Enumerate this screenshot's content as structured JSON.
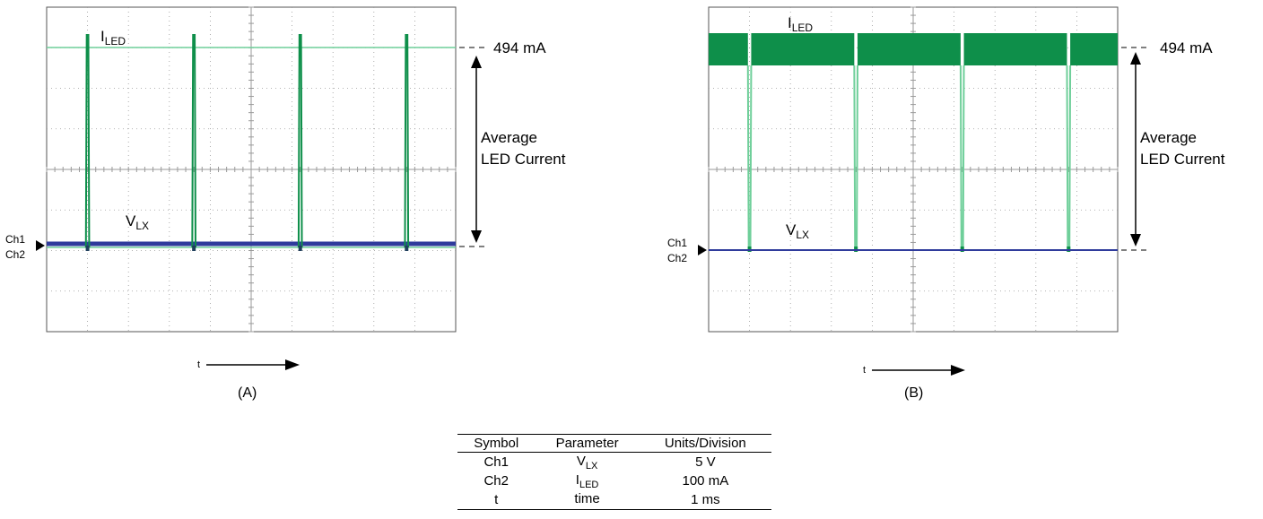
{
  "colors": {
    "iled": "#0e8f4a",
    "iled_light": "#6fcf9a",
    "vlx": "#2f3b9c",
    "grid": "#9a9a9a"
  },
  "figures": [
    {
      "panel_label": "(A)",
      "iled_label": {
        "main": "I",
        "sub": "LED"
      },
      "vlx_label": {
        "main": "V",
        "sub": "LX"
      },
      "ch1": "Ch1",
      "ch2": "Ch2",
      "peak_label": "494 mA",
      "avg_label_line1": "Average",
      "avg_label_line2": "LED Current",
      "time_label": "t"
    },
    {
      "panel_label": "(B)",
      "iled_label": {
        "main": "I",
        "sub": "LED"
      },
      "vlx_label": {
        "main": "V",
        "sub": "LX"
      },
      "ch1": "Ch1",
      "ch2": "Ch2",
      "peak_label": "494 mA",
      "avg_label_line1": "Average",
      "avg_label_line2": "LED Current",
      "time_label": "t"
    }
  ],
  "chart_data": [
    {
      "type": "line",
      "grid": true,
      "x_divisions": 10,
      "y_divisions": 8,
      "xlabel": "t",
      "series": [
        {
          "name": "ILED",
          "shape": "narrow pulses",
          "pulse_times_div": [
            1.0,
            3.6,
            6.2,
            8.8
          ],
          "pulse_width_div": 0.08,
          "level_mA": 494
        },
        {
          "name": "VLX",
          "shape": "flat",
          "level_mA": 0
        }
      ]
    },
    {
      "type": "line",
      "grid": true,
      "x_divisions": 10,
      "y_divisions": 8,
      "xlabel": "t",
      "series": [
        {
          "name": "ILED",
          "shape": "high level with notches",
          "notch_times_div": [
            1.0,
            3.6,
            6.2,
            8.8
          ],
          "notch_width_div": 0.08,
          "level_mA": 494
        },
        {
          "name": "VLX",
          "shape": "flat",
          "level_mA": 0
        }
      ]
    }
  ],
  "table": {
    "headers": [
      "Symbol",
      "Parameter",
      "Units/Division"
    ],
    "rows": [
      {
        "symbol": "Ch1",
        "param_main": "V",
        "param_sub": "LX",
        "units": "5 V"
      },
      {
        "symbol": "Ch2",
        "param_main": "I",
        "param_sub": "LED",
        "units": "100 mA"
      },
      {
        "symbol": "t",
        "param_main": "time",
        "param_sub": "",
        "units": "1 ms"
      }
    ]
  }
}
